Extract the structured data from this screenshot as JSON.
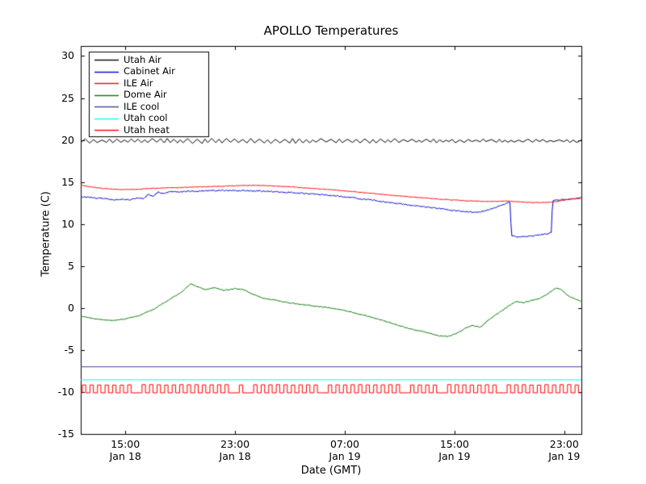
{
  "window": {
    "title": "APOLLO Temperatures"
  },
  "chart_data": {
    "type": "line",
    "title": "APOLLO Temperatures",
    "xlabel": "Date (GMT)",
    "ylabel": "Temperature (C)",
    "x_unit": "hours since Jan 18 00:00 GMT",
    "x_domain_hours": [
      11.75,
      48.25
    ],
    "ylim": [
      -15,
      31.2
    ],
    "yticks": [
      30,
      25,
      20,
      15,
      10,
      5,
      0,
      -5,
      -10,
      -15
    ],
    "xticks": [
      {
        "t": 15,
        "time": "15:00",
        "date": "Jan 18"
      },
      {
        "t": 23,
        "time": "23:00",
        "date": "Jan 18"
      },
      {
        "t": 31,
        "time": "07:00",
        "date": "Jan 19"
      },
      {
        "t": 39,
        "time": "15:00",
        "date": "Jan 19"
      },
      {
        "t": 47,
        "time": "23:00",
        "date": "Jan 19"
      }
    ],
    "grid": false,
    "legend_position": "upper left",
    "series": [
      {
        "name": "Utah Air",
        "color": "#000000",
        "style": "zigzag",
        "zigzag": {
          "base": 19.9,
          "amplitude": 0.36,
          "period": 0.55,
          "min": 19.45,
          "max": 20.3
        }
      },
      {
        "name": "Cabinet Air",
        "color": "#0000cd",
        "style": "noisy",
        "noise": 0.07,
        "points": [
          [
            11.75,
            13.25
          ],
          [
            12.5,
            13.15
          ],
          [
            13.3,
            13.05
          ],
          [
            14.2,
            12.9
          ],
          [
            14.8,
            12.95
          ],
          [
            15.3,
            12.9
          ],
          [
            15.9,
            13.1
          ],
          [
            16.3,
            13.0
          ],
          [
            16.7,
            13.55
          ],
          [
            17.0,
            13.3
          ],
          [
            17.4,
            13.8
          ],
          [
            17.8,
            13.6
          ],
          [
            18.2,
            13.9
          ],
          [
            19.0,
            13.85
          ],
          [
            20.0,
            13.9
          ],
          [
            21.0,
            13.95
          ],
          [
            22.0,
            14.0
          ],
          [
            23.0,
            14.0
          ],
          [
            24.0,
            13.95
          ],
          [
            25.0,
            13.9
          ],
          [
            26.0,
            13.85
          ],
          [
            27.0,
            13.75
          ],
          [
            28.0,
            13.65
          ],
          [
            29.0,
            13.55
          ],
          [
            30.0,
            13.4
          ],
          [
            31.0,
            13.25
          ],
          [
            32.0,
            13.05
          ],
          [
            33.0,
            12.85
          ],
          [
            34.0,
            12.6
          ],
          [
            35.0,
            12.4
          ],
          [
            36.0,
            12.2
          ],
          [
            37.0,
            12.0
          ],
          [
            38.0,
            11.8
          ],
          [
            39.0,
            11.6
          ],
          [
            40.0,
            11.45
          ],
          [
            40.8,
            11.4
          ],
          [
            41.5,
            11.7
          ],
          [
            42.2,
            12.1
          ],
          [
            42.9,
            12.55
          ],
          [
            43.05,
            12.6
          ],
          [
            43.15,
            8.6
          ],
          [
            43.6,
            8.5
          ],
          [
            44.2,
            8.55
          ],
          [
            44.8,
            8.6
          ],
          [
            45.4,
            8.75
          ],
          [
            45.9,
            8.9
          ],
          [
            46.05,
            9.0
          ],
          [
            46.15,
            12.75
          ],
          [
            46.8,
            12.9
          ],
          [
            47.5,
            13.0
          ],
          [
            48.25,
            13.1
          ]
        ]
      },
      {
        "name": "ILE Air",
        "color": "#ff0000",
        "style": "noisy",
        "noise": 0.03,
        "points": [
          [
            11.75,
            14.65
          ],
          [
            12.3,
            14.45
          ],
          [
            13.0,
            14.3
          ],
          [
            14.0,
            14.15
          ],
          [
            15.0,
            14.1
          ],
          [
            16.0,
            14.15
          ],
          [
            17.0,
            14.25
          ],
          [
            18.0,
            14.3
          ],
          [
            19.0,
            14.35
          ],
          [
            20.0,
            14.4
          ],
          [
            21.0,
            14.45
          ],
          [
            22.0,
            14.5
          ],
          [
            23.0,
            14.55
          ],
          [
            24.0,
            14.6
          ],
          [
            25.0,
            14.6
          ],
          [
            26.0,
            14.5
          ],
          [
            27.0,
            14.45
          ],
          [
            28.0,
            14.3
          ],
          [
            29.0,
            14.2
          ],
          [
            30.0,
            14.1
          ],
          [
            31.0,
            13.95
          ],
          [
            32.0,
            13.8
          ],
          [
            33.0,
            13.65
          ],
          [
            34.0,
            13.5
          ],
          [
            35.0,
            13.35
          ],
          [
            36.0,
            13.2
          ],
          [
            37.0,
            13.1
          ],
          [
            38.0,
            12.95
          ],
          [
            39.0,
            12.85
          ],
          [
            40.0,
            12.75
          ],
          [
            41.0,
            12.7
          ],
          [
            42.0,
            12.7
          ],
          [
            42.8,
            12.75
          ],
          [
            43.2,
            12.7
          ],
          [
            44.0,
            12.6
          ],
          [
            45.0,
            12.55
          ],
          [
            46.0,
            12.6
          ],
          [
            46.5,
            12.7
          ],
          [
            47.0,
            12.85
          ],
          [
            47.6,
            13.0
          ],
          [
            48.25,
            13.05
          ]
        ]
      },
      {
        "name": "Dome Air",
        "color": "#007700",
        "style": "noisy",
        "noise": 0.05,
        "points": [
          [
            11.75,
            -1.0
          ],
          [
            12.8,
            -1.3
          ],
          [
            14.0,
            -1.5
          ],
          [
            15.0,
            -1.3
          ],
          [
            16.0,
            -0.9
          ],
          [
            17.0,
            -0.2
          ],
          [
            18.0,
            0.8
          ],
          [
            19.0,
            1.8
          ],
          [
            19.8,
            2.9
          ],
          [
            20.3,
            2.5
          ],
          [
            20.8,
            2.2
          ],
          [
            21.5,
            2.4
          ],
          [
            22.2,
            2.1
          ],
          [
            23.0,
            2.3
          ],
          [
            23.6,
            2.2
          ],
          [
            24.2,
            1.7
          ],
          [
            25.0,
            1.2
          ],
          [
            26.0,
            0.9
          ],
          [
            27.0,
            0.6
          ],
          [
            28.0,
            0.4
          ],
          [
            29.0,
            0.2
          ],
          [
            30.0,
            0.0
          ],
          [
            31.0,
            -0.3
          ],
          [
            32.0,
            -0.7
          ],
          [
            33.0,
            -1.1
          ],
          [
            34.0,
            -1.6
          ],
          [
            35.0,
            -2.1
          ],
          [
            36.0,
            -2.6
          ],
          [
            37.0,
            -2.9
          ],
          [
            37.8,
            -3.3
          ],
          [
            38.5,
            -3.4
          ],
          [
            39.2,
            -3.0
          ],
          [
            39.8,
            -2.4
          ],
          [
            40.3,
            -2.1
          ],
          [
            40.9,
            -2.3
          ],
          [
            41.5,
            -1.4
          ],
          [
            42.2,
            -0.6
          ],
          [
            42.9,
            0.2
          ],
          [
            43.5,
            0.8
          ],
          [
            44.0,
            0.6
          ],
          [
            44.6,
            0.9
          ],
          [
            45.2,
            1.1
          ],
          [
            45.8,
            1.7
          ],
          [
            46.4,
            2.4
          ],
          [
            46.8,
            2.2
          ],
          [
            47.3,
            1.4
          ],
          [
            48.25,
            0.8
          ]
        ]
      },
      {
        "name": "ILE cool",
        "color": "#404090",
        "style": "line",
        "points": [
          [
            11.75,
            -7.0
          ],
          [
            48.25,
            -7.0
          ]
        ]
      },
      {
        "name": "Utah cool",
        "color": "#00ffff",
        "style": "line",
        "points": [
          [
            11.75,
            -8.55
          ],
          [
            48.25,
            -8.55
          ]
        ]
      },
      {
        "name": "Utah heat",
        "color": "#ff0000",
        "style": "square",
        "square": {
          "low": -10.1,
          "high": -9.15,
          "period": 0.55,
          "width": 0.25
        }
      }
    ]
  },
  "layout_meta": {
    "legend_title_note": ""
  }
}
